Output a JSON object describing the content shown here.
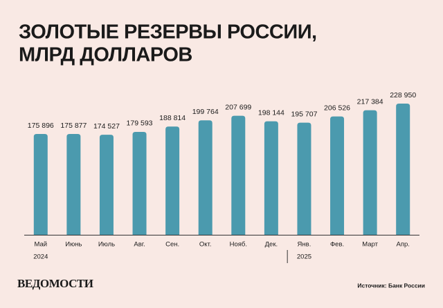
{
  "chart_data": {
    "type": "bar",
    "title": [
      "ЗОЛОТЫЕ РЕЗЕРВЫ РОССИИ,",
      "МЛРД ДОЛЛАРОВ"
    ],
    "categories": [
      "Май",
      "Июнь",
      "Июль",
      "Авг.",
      "Сен.",
      "Окт.",
      "Нояб.",
      "Дек.",
      "Янв.",
      "Фев.",
      "Март",
      "Апр."
    ],
    "category_years": [
      "2024",
      null,
      null,
      null,
      null,
      null,
      null,
      null,
      "2025",
      null,
      null,
      null
    ],
    "values": [
      175896,
      175877,
      174527,
      179593,
      188814,
      199764,
      207699,
      198144,
      195707,
      206526,
      217384,
      228950
    ],
    "value_labels": [
      "175 896",
      "175 877",
      "174 527",
      "179 593",
      "188 814",
      "199 764",
      "207 699",
      "198 144",
      "195 707",
      "206 526",
      "217 384",
      "228 950"
    ],
    "color": "#4b9aae"
  },
  "footer": {
    "logo": "ВЕДОМОСТИ",
    "source": "Источник: Банк России"
  }
}
